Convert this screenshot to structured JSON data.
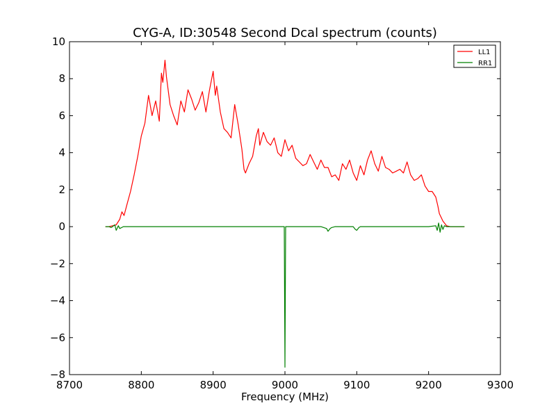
{
  "chart_data": {
    "type": "line",
    "title": "CYG-A, ID:30548 Second Dcal spectrum (counts)",
    "xlabel": "Frequency (MHz)",
    "ylabel": "",
    "xlim": [
      8700,
      9300
    ],
    "ylim": [
      -8,
      10
    ],
    "xticks": [
      "8700",
      "8800",
      "8900",
      "9000",
      "9100",
      "9200",
      "9300"
    ],
    "yticks": [
      "10",
      "8",
      "6",
      "4",
      "2",
      "0",
      "−2",
      "−4",
      "−6",
      "−8"
    ],
    "grid": false,
    "legend": "top-right",
    "series": [
      {
        "name": "LL1",
        "color": "#ff0000",
        "x": [
          8750,
          8755,
          8760,
          8765,
          8770,
          8773,
          8776,
          8780,
          8785,
          8790,
          8795,
          8800,
          8805,
          8810,
          8815,
          8820,
          8825,
          8828,
          8830,
          8833,
          8835,
          8840,
          8845,
          8850,
          8855,
          8860,
          8865,
          8870,
          8875,
          8880,
          8885,
          8890,
          8895,
          8900,
          8903,
          8905,
          8910,
          8915,
          8920,
          8925,
          8930,
          8935,
          8940,
          8943,
          8945,
          8950,
          8955,
          8960,
          8963,
          8965,
          8970,
          8975,
          8980,
          8985,
          8990,
          8995,
          9000,
          9005,
          9010,
          9015,
          9020,
          9025,
          9030,
          9035,
          9040,
          9045,
          9050,
          9055,
          9060,
          9065,
          9070,
          9075,
          9080,
          9085,
          9090,
          9095,
          9100,
          9105,
          9110,
          9115,
          9120,
          9125,
          9130,
          9135,
          9140,
          9145,
          9150,
          9155,
          9160,
          9165,
          9170,
          9175,
          9180,
          9185,
          9190,
          9195,
          9200,
          9205,
          9210,
          9213,
          9215,
          9220,
          9225,
          9230,
          9240,
          9250
        ],
        "y": [
          0.0,
          0.0,
          0.05,
          0.1,
          0.4,
          0.8,
          0.6,
          1.2,
          1.9,
          2.8,
          3.8,
          4.9,
          5.6,
          7.1,
          6.0,
          6.8,
          5.7,
          8.3,
          7.8,
          9.0,
          8.1,
          6.6,
          6.0,
          5.5,
          6.8,
          6.2,
          7.4,
          6.9,
          6.3,
          6.7,
          7.3,
          6.2,
          7.4,
          8.4,
          7.1,
          7.6,
          6.2,
          5.3,
          5.1,
          4.8,
          6.6,
          5.5,
          4.2,
          3.1,
          2.9,
          3.4,
          3.8,
          4.9,
          5.3,
          4.4,
          5.1,
          4.6,
          4.4,
          4.8,
          4.0,
          3.8,
          4.7,
          4.1,
          4.4,
          3.7,
          3.5,
          3.3,
          3.4,
          3.9,
          3.5,
          3.1,
          3.6,
          3.2,
          3.2,
          2.7,
          2.8,
          2.5,
          3.4,
          3.1,
          3.6,
          2.9,
          2.5,
          3.3,
          2.8,
          3.6,
          4.1,
          3.4,
          3.0,
          3.8,
          3.2,
          3.1,
          2.9,
          3.0,
          3.1,
          2.9,
          3.5,
          2.8,
          2.5,
          2.6,
          2.8,
          2.2,
          1.9,
          1.9,
          1.6,
          1.1,
          0.7,
          0.3,
          0.05,
          0.0,
          0.0,
          0.0
        ]
      },
      {
        "name": "RR1",
        "color": "#008000",
        "x": [
          8750,
          8755,
          8758,
          8760,
          8763,
          8765,
          8768,
          8770,
          8775,
          8780,
          8800,
          8850,
          8900,
          8950,
          8999,
          9000,
          9001,
          9002,
          9050,
          9058,
          9060,
          9063,
          9065,
          9070,
          9095,
          9098,
          9100,
          9103,
          9105,
          9150,
          9200,
          9210,
          9212,
          9214,
          9216,
          9218,
          9220,
          9222,
          9225,
          9230,
          9240,
          9250
        ],
        "y": [
          0.0,
          0.0,
          -0.05,
          0.0,
          0.1,
          -0.2,
          0.05,
          -0.1,
          0.0,
          0.0,
          0.0,
          0.0,
          0.0,
          0.0,
          0.0,
          -7.6,
          0.0,
          0.0,
          0.0,
          -0.1,
          -0.25,
          -0.1,
          -0.05,
          0.0,
          0.0,
          -0.15,
          -0.2,
          -0.05,
          0.0,
          0.0,
          0.0,
          0.05,
          -0.2,
          0.2,
          -0.3,
          0.1,
          -0.15,
          0.05,
          0.0,
          0.0,
          0.0,
          0.0
        ]
      }
    ]
  }
}
